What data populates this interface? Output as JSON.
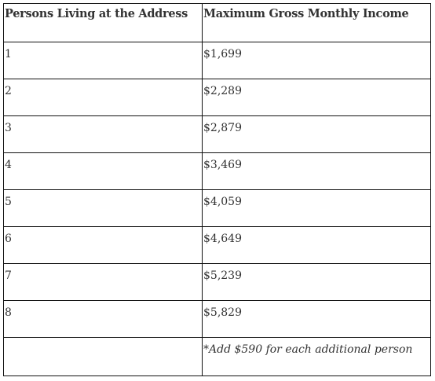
{
  "table": {
    "headers": [
      "Persons Living at the Address",
      "Maximum Gross Monthly Income"
    ],
    "rows": [
      {
        "persons": "1",
        "income": "$1,699"
      },
      {
        "persons": "2",
        "income": "$2,289"
      },
      {
        "persons": "3",
        "income": "$2,879"
      },
      {
        "persons": "4",
        "income": "$3,469"
      },
      {
        "persons": "5",
        "income": "$4,059"
      },
      {
        "persons": "6",
        "income": "$4,649"
      },
      {
        "persons": "7",
        "income": "$5,239"
      },
      {
        "persons": "8",
        "income": "$5,829"
      }
    ],
    "note": {
      "persons": "",
      "income": "*Add $590 for each additional person"
    }
  }
}
